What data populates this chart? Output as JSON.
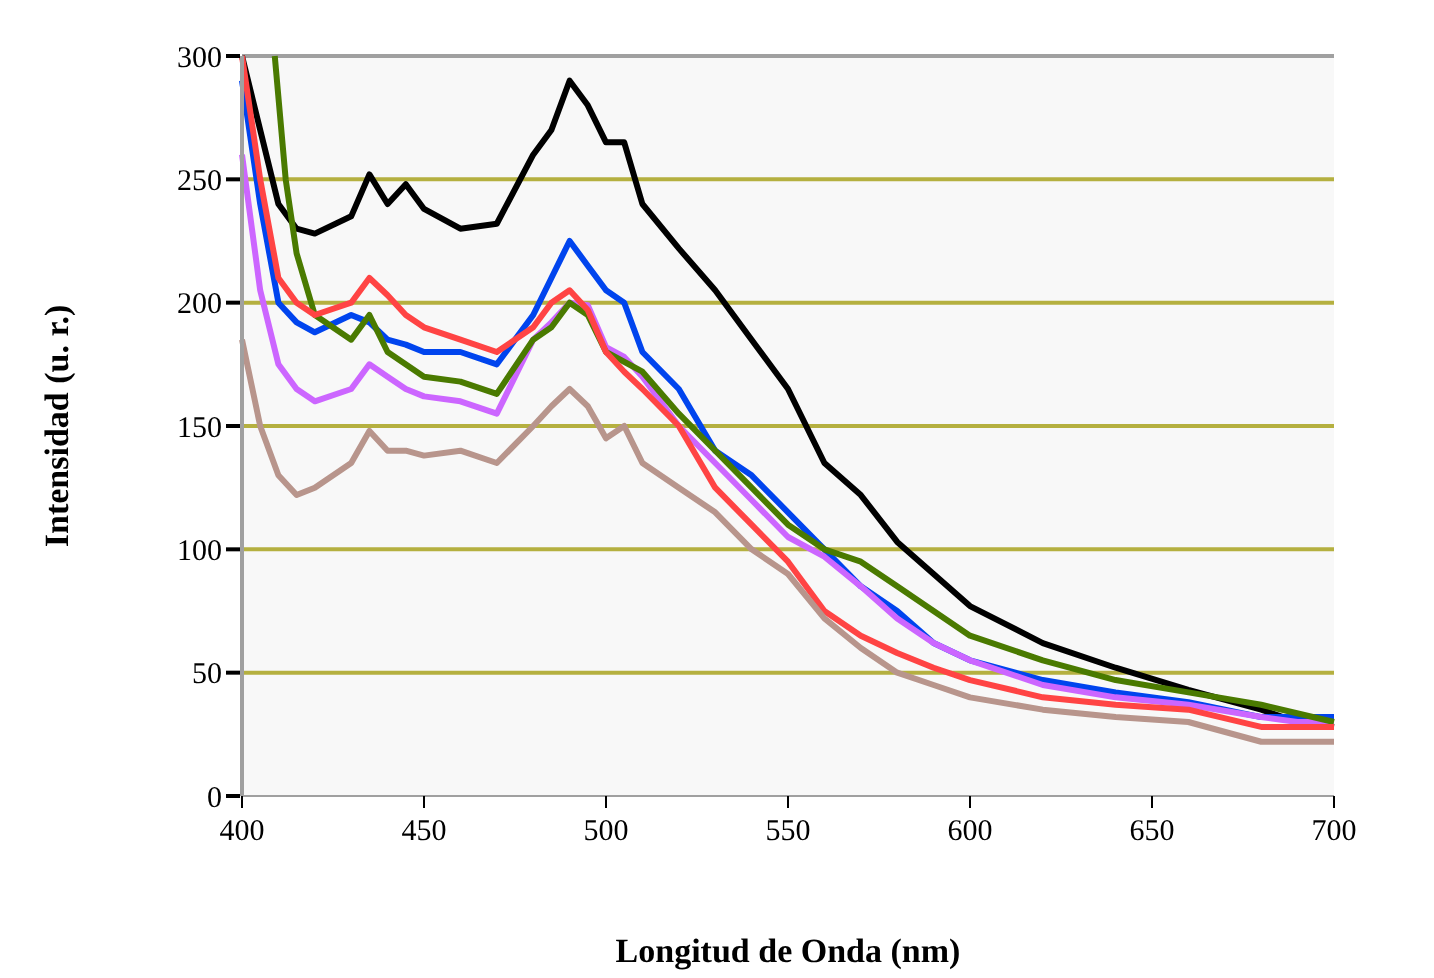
{
  "chart_data": {
    "type": "line",
    "xlabel": "Longitud de Onda (nm)",
    "ylabel": "Intensidad (u. r.)",
    "xlim": [
      400,
      700
    ],
    "xticks": [
      400,
      450,
      500,
      550,
      600,
      650,
      700
    ],
    "ylim": [
      0,
      300
    ],
    "yticks": [
      0,
      50,
      100,
      150,
      200,
      250,
      300
    ],
    "grid": "y",
    "line_style": "solid",
    "x": [
      400,
      405,
      410,
      415,
      420,
      430,
      435,
      440,
      445,
      450,
      460,
      470,
      480,
      485,
      490,
      495,
      500,
      505,
      510,
      520,
      530,
      540,
      550,
      560,
      570,
      580,
      590,
      600,
      620,
      640,
      660,
      680,
      690,
      700
    ],
    "series": [
      {
        "color": "#000000",
        "values": [
          300,
          270,
          240,
          230,
          228,
          235,
          252,
          240,
          248,
          238,
          230,
          232,
          260,
          270,
          290,
          280,
          265,
          265,
          240,
          222,
          205,
          185,
          165,
          135,
          122,
          103,
          90,
          77,
          62,
          52,
          43,
          35,
          30,
          28
        ]
      },
      {
        "color": "#0044ee",
        "values": [
          290,
          240,
          200,
          192,
          188,
          195,
          192,
          185,
          183,
          180,
          180,
          175,
          195,
          210,
          225,
          215,
          205,
          200,
          180,
          165,
          140,
          130,
          115,
          100,
          85,
          75,
          62,
          55,
          47,
          42,
          38,
          32,
          32,
          32
        ]
      },
      {
        "color": "#cc66ff",
        "values": [
          260,
          205,
          175,
          165,
          160,
          165,
          175,
          170,
          165,
          162,
          160,
          155,
          185,
          192,
          200,
          199,
          182,
          178,
          170,
          150,
          135,
          120,
          105,
          97,
          85,
          72,
          62,
          55,
          45,
          40,
          37,
          32,
          30,
          30
        ]
      },
      {
        "color": "#4a7a00",
        "x": [
          409,
          412,
          415,
          420,
          430,
          435,
          440,
          450,
          460,
          470,
          480,
          485,
          490,
          495,
          500,
          510,
          520,
          530,
          540,
          550,
          560,
          570,
          580,
          590,
          600,
          620,
          640,
          660,
          680,
          700
        ],
        "values": [
          300,
          250,
          220,
          195,
          185,
          195,
          180,
          170,
          168,
          163,
          185,
          190,
          200,
          195,
          180,
          172,
          155,
          140,
          125,
          110,
          100,
          95,
          85,
          75,
          65,
          55,
          47,
          42,
          37,
          30
        ]
      },
      {
        "color": "#ff4444",
        "values": [
          300,
          250,
          210,
          200,
          195,
          200,
          210,
          203,
          195,
          190,
          185,
          180,
          190,
          200,
          205,
          197,
          180,
          172,
          165,
          150,
          125,
          110,
          95,
          75,
          65,
          58,
          52,
          47,
          40,
          37,
          35,
          28,
          28,
          28
        ]
      },
      {
        "color": "#b8958c",
        "values": [
          185,
          150,
          130,
          122,
          125,
          135,
          148,
          140,
          140,
          138,
          140,
          135,
          150,
          158,
          165,
          158,
          145,
          150,
          135,
          125,
          115,
          100,
          90,
          72,
          60,
          50,
          45,
          40,
          35,
          32,
          30,
          22,
          22,
          22
        ]
      }
    ]
  }
}
